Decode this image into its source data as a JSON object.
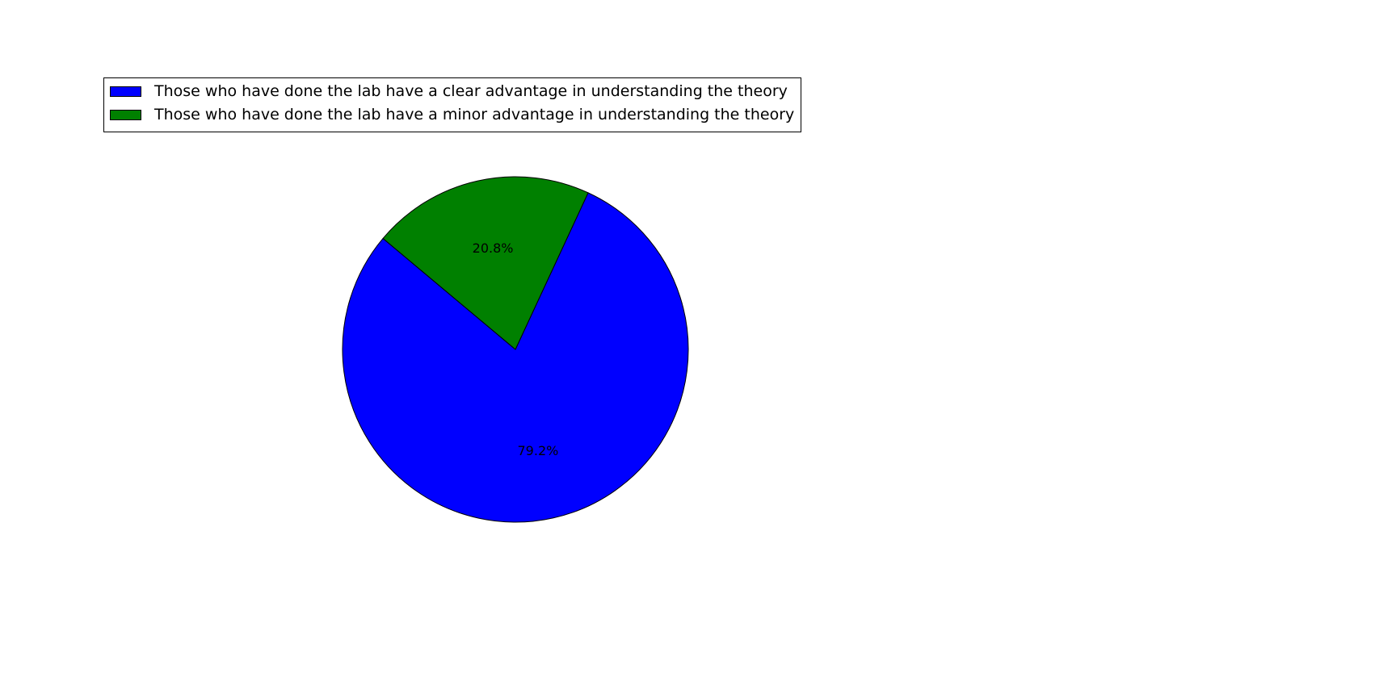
{
  "chart_data": {
    "type": "pie",
    "title": "",
    "categories": [
      "Those who have done the lab have a clear advantage in understanding the theory",
      "Those who have done the lab have a minor advantage in understanding the theory"
    ],
    "values": [
      79.2,
      20.8
    ],
    "value_labels": [
      "79.2%",
      "20.8%"
    ],
    "colors": [
      "#0000ff",
      "#008000"
    ],
    "start_angle_deg": 140,
    "direction": "counterclockwise",
    "legend_placement": "top-left",
    "legend": [
      {
        "label": "Those who have done the lab have a clear advantage in understanding the theory",
        "color": "#0000ff"
      },
      {
        "label": "Those who have done the lab have a minor advantage in understanding the theory",
        "color": "#008000"
      }
    ]
  }
}
